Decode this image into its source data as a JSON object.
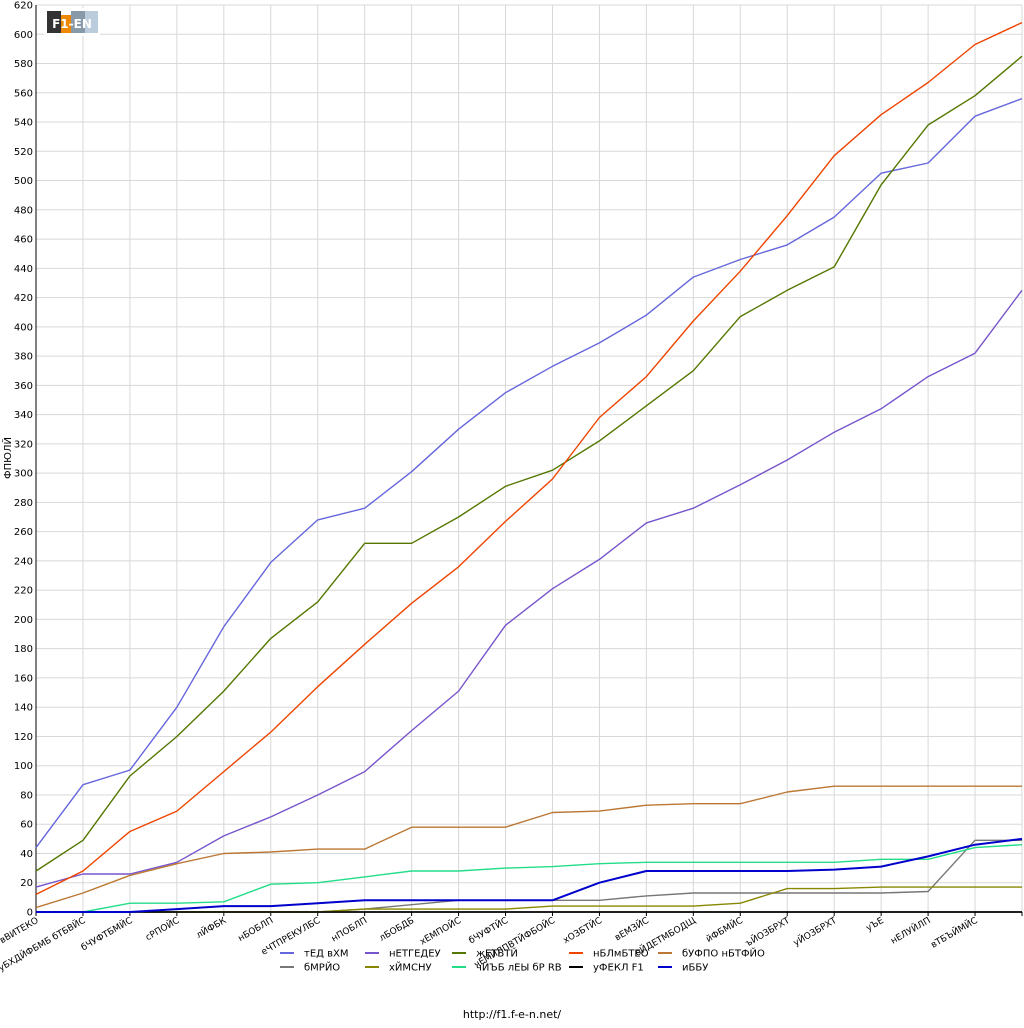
{
  "footer": "http://f1.f-e-n.net/",
  "logo": {
    "text": "F1-EN",
    "icon": "f1-fen-logo-icon"
  },
  "chart_data": {
    "type": "line",
    "ylabel": "ФПЮЛЙ",
    "xlabel": "",
    "ylim": [
      0,
      620
    ],
    "yticks": [
      0,
      20,
      40,
      60,
      80,
      100,
      120,
      140,
      160,
      180,
      200,
      220,
      240,
      260,
      280,
      300,
      320,
      340,
      360,
      380,
      400,
      420,
      440,
      460,
      480,
      500,
      520,
      540,
      560,
      580,
      600,
      620
    ],
    "grid": true,
    "legend_position": "bottom",
    "categories": [
      "вВИТЕКО",
      "уБХДЙФБМБ бТБВЙС",
      "бЧУФТБМЙС",
      "сРПОЙС",
      "лЙФБК",
      "нБОБЛП",
      "еЧТПРЕКУЛБС",
      "нПОБЛП",
      "лБОБДБ",
      "хЕМПОЙС",
      "бЧУФТЙС",
      "чЕМЙЛПВТЙФБОЙС",
      "хОЗБТЙС",
      "вЕМЗЙС",
      "оЙДЕТМБОДЩ",
      "йФБМЙС",
      "ъЙОЗБРХТ",
      "уЙОЗБРХТ",
      "уЪЕ",
      "нЕЛУЙЛП",
      "вТБЪЙМЙС",
      ""
    ],
    "series": [
      {
        "name": "тЕД вХМ",
        "color": "#6666dd",
        "values": [
          44,
          87,
          97,
          140,
          195,
          239,
          268,
          276,
          301,
          330,
          355,
          373,
          389,
          408,
          434,
          446,
          456,
          475,
          505,
          512,
          544,
          556
        ]
      },
      {
        "name": "нЕТГЕДЕУ",
        "color": "#7755cc",
        "values": [
          17,
          26,
          26,
          34,
          52,
          65,
          80,
          96,
          124,
          151,
          196,
          221,
          241,
          266,
          276,
          292,
          309,
          328,
          344,
          366,
          382,
          425
        ]
      },
      {
        "name": "жЕТБТЙ",
        "color": "#557700",
        "values": [
          28,
          49,
          93,
          120,
          151,
          187,
          212,
          252,
          252,
          270,
          291,
          302,
          322,
          346,
          370,
          407,
          425,
          441,
          497,
          538,
          558,
          585
        ]
      },
      {
        "name": "нБЛмБТЕО",
        "color": "#ee4400",
        "values": [
          12,
          28,
          55,
          69,
          96,
          123,
          154,
          183,
          211,
          236,
          267,
          296,
          338,
          366,
          404,
          438,
          476,
          517,
          545,
          567,
          593,
          608
        ]
      },
      {
        "name": "бУФПО нБТФЙО",
        "color": "#bb7733",
        "values": [
          3,
          13,
          25,
          33,
          40,
          41,
          43,
          43,
          58,
          58,
          58,
          68,
          69,
          73,
          74,
          74,
          82,
          86,
          86,
          86,
          86,
          86
        ]
      },
      {
        "name": "бМРЙО",
        "color": "#777777",
        "values": [
          0,
          0,
          0,
          0,
          0,
          0,
          0,
          2,
          5,
          8,
          8,
          8,
          8,
          11,
          13,
          13,
          13,
          13,
          13,
          14,
          49,
          49
        ]
      },
      {
        "name": "хЙМСНУ",
        "color": "#888800",
        "values": [
          0,
          0,
          0,
          0,
          0,
          0,
          0,
          2,
          2,
          2,
          2,
          4,
          4,
          4,
          4,
          6,
          16,
          16,
          17,
          17,
          17,
          17
        ]
      },
      {
        "name": "чЙЪБ лЕЫ бР RB",
        "color": "#22dd88",
        "values": [
          0,
          0,
          6,
          6,
          7,
          19,
          20,
          24,
          28,
          28,
          30,
          31,
          33,
          34,
          34,
          34,
          34,
          34,
          36,
          36,
          44,
          46
        ]
      },
      {
        "name": "уФЕКЛ F1",
        "color": "#000000",
        "values": [
          0,
          0,
          0,
          0,
          0,
          0,
          0,
          0,
          0,
          0,
          0,
          0,
          0,
          0,
          0,
          0,
          0,
          0,
          0,
          0,
          0,
          0
        ]
      },
      {
        "name": "иББУ",
        "color": "#0000cc",
        "values": [
          0,
          0,
          0,
          2,
          4,
          4,
          6,
          8,
          8,
          8,
          8,
          8,
          20,
          28,
          28,
          28,
          28,
          29,
          31,
          38,
          46,
          50
        ]
      }
    ]
  }
}
